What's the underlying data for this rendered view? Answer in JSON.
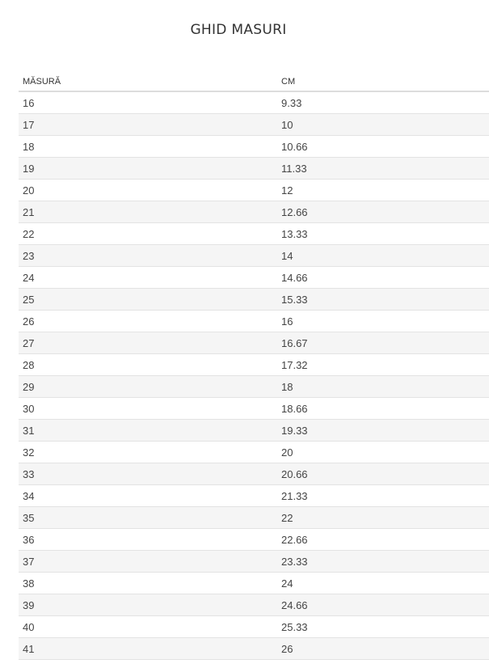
{
  "title": "GHID MASURI",
  "table": {
    "headers": [
      "MĂSURĂ",
      "CM"
    ],
    "rows": [
      [
        "16",
        "9.33"
      ],
      [
        "17",
        "10"
      ],
      [
        "18",
        "10.66"
      ],
      [
        "19",
        "11.33"
      ],
      [
        "20",
        "12"
      ],
      [
        "21",
        "12.66"
      ],
      [
        "22",
        "13.33"
      ],
      [
        "23",
        "14"
      ],
      [
        "24",
        "14.66"
      ],
      [
        "25",
        "15.33"
      ],
      [
        "26",
        "16"
      ],
      [
        "27",
        "16.67"
      ],
      [
        "28",
        "17.32"
      ],
      [
        "29",
        "18"
      ],
      [
        "30",
        "18.66"
      ],
      [
        "31",
        "19.33"
      ],
      [
        "32",
        "20"
      ],
      [
        "33",
        "20.66"
      ],
      [
        "34",
        "21.33"
      ],
      [
        "35",
        "22"
      ],
      [
        "36",
        "22.66"
      ],
      [
        "37",
        "23.33"
      ],
      [
        "38",
        "24"
      ],
      [
        "39",
        "24.66"
      ],
      [
        "40",
        "25.33"
      ],
      [
        "41",
        "26"
      ]
    ]
  }
}
